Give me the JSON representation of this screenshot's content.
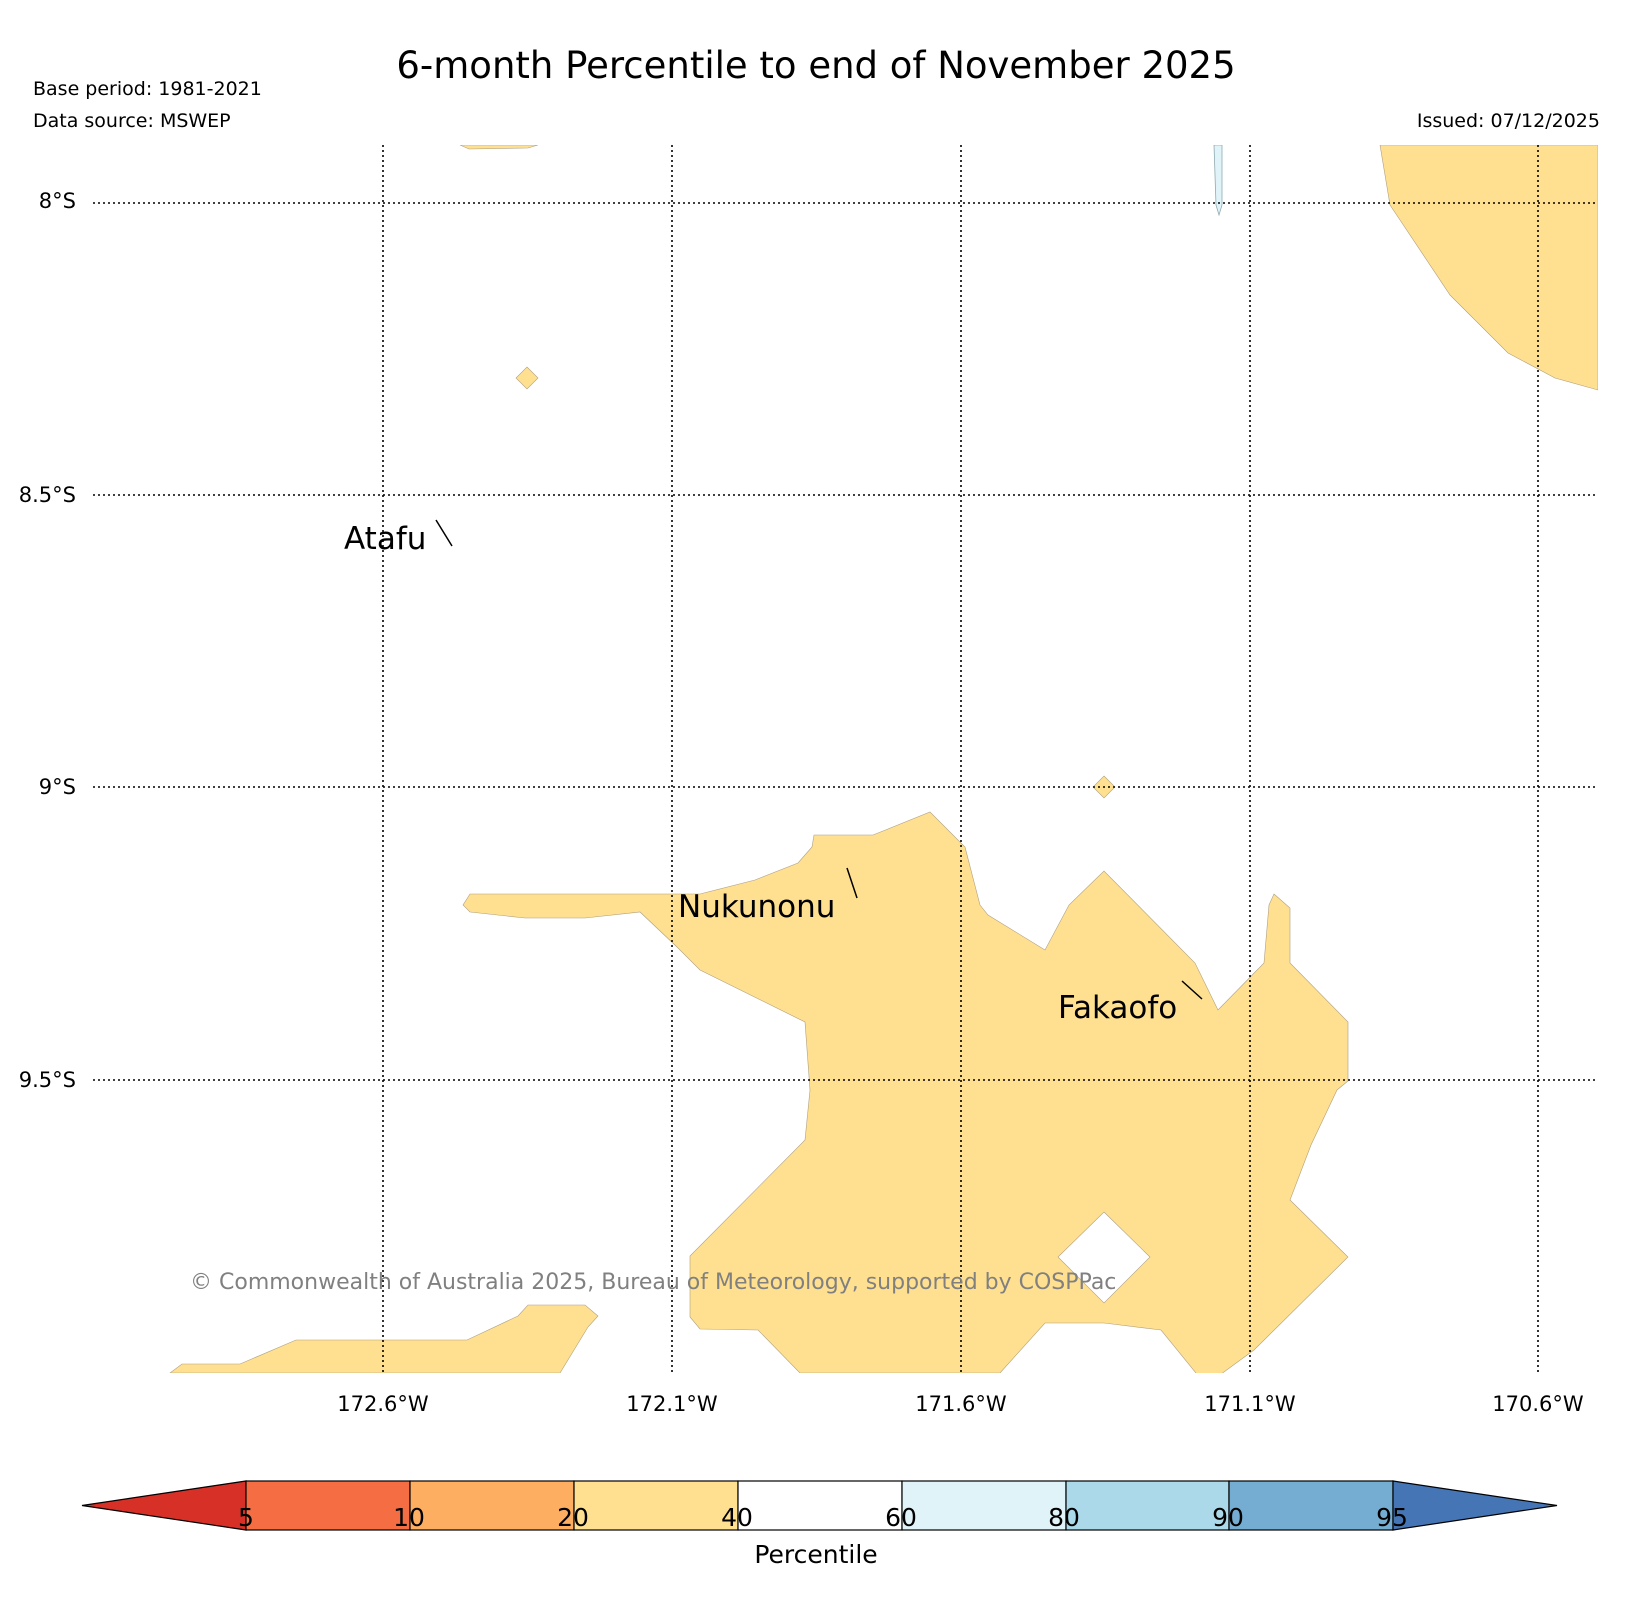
{
  "header": {
    "title": "6-month Percentile to end of November 2025",
    "base_period": "Base period: 1981-2021",
    "data_source": "Data source: MSWEP",
    "issued": "Issued: 07/12/2025"
  },
  "map": {
    "lat_labels": [
      "8°S",
      "8.5°S",
      "9°S",
      "9.5°S"
    ],
    "lon_labels": [
      "172.6°W",
      "172.1°W",
      "171.6°W",
      "171.1°W",
      "170.6°W"
    ],
    "places": [
      "Atafu",
      "Nukunonu",
      "Fakaofo"
    ],
    "copyright": "© Commonwealth of Australia 2025, Bureau of Meteorology, supported by COSPPac",
    "shaded_category": "20-40",
    "colors": {
      "shade_20_40": "#fee090",
      "shade_60_80": "#e0f3f8",
      "grid": "#000000",
      "copyright": "#808080"
    }
  },
  "colorbar": {
    "title": "Percentile",
    "ticks": [
      "5",
      "10",
      "20",
      "40",
      "60",
      "80",
      "90",
      "95"
    ],
    "colors": [
      "#d73027",
      "#f46d43",
      "#fdae61",
      "#fee090",
      "#ffffff",
      "#e0f3f8",
      "#abd9e9",
      "#74add1",
      "#4575b4"
    ]
  }
}
